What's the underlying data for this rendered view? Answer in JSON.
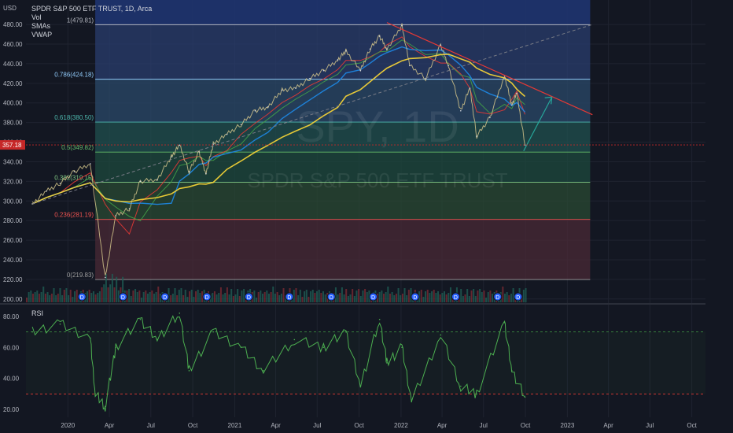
{
  "header": {
    "title": "SPDR S&P 500 ETF TRUST, 1D, Arca",
    "indicators": [
      "Vol",
      "SMAs",
      "VWAP"
    ],
    "currency": "USD"
  },
  "watermark": {
    "symbol": "SPY, 1D",
    "name": "SPDR S&P 500 ETF TRUST"
  },
  "rsi": {
    "label": "RSI"
  },
  "colors": {
    "background": "#131722",
    "sma_fast": "#e53935",
    "sma_mid": "#43a047",
    "sma_slow": "#1e88e5",
    "sma_200": "#fdd835",
    "rsi": "#4caf50",
    "arrow": "#26a69a"
  },
  "chart_data": [
    {
      "type": "line",
      "title": "SPDR S&P 500 ETF TRUST, 1D, Arca",
      "ylabel": "USD",
      "ylim": [
        195,
        505
      ],
      "y_ticks": [
        "480.00",
        "460.00",
        "440.00",
        "420.00",
        "400.00",
        "380.00",
        "360.00",
        "340.00",
        "320.00",
        "300.00",
        "280.00",
        "260.00",
        "240.00",
        "220.00",
        "200.00"
      ],
      "x_ticks": [
        "2020",
        "Apr",
        "Jul",
        "Oct",
        "2021",
        "Apr",
        "Jul",
        "Oct",
        "2022",
        "Apr",
        "Jul",
        "Oct",
        "2023",
        "Apr",
        "Jul",
        "Oct"
      ],
      "last_price": "357.18",
      "series": [
        {
          "name": "SPY",
          "x": [
            "2019-10-15",
            "2019-11-15",
            "2019-12-15",
            "2020-01-15",
            "2020-02-19",
            "2020-03-23",
            "2020-04-15",
            "2020-05-15",
            "2020-06-08",
            "2020-07-15",
            "2020-08-15",
            "2020-09-02",
            "2020-09-23",
            "2020-10-15",
            "2020-10-30",
            "2020-11-15",
            "2020-12-15",
            "2021-01-15",
            "2021-02-15",
            "2021-03-15",
            "2021-04-15",
            "2021-05-15",
            "2021-06-15",
            "2021-07-15",
            "2021-08-15",
            "2021-09-02",
            "2021-10-04",
            "2021-10-25",
            "2021-11-15",
            "2021-12-01",
            "2022-01-03",
            "2022-01-20",
            "2022-02-24",
            "2022-03-29",
            "2022-04-15",
            "2022-05-12",
            "2022-06-01",
            "2022-06-16",
            "2022-07-15",
            "2022-08-16",
            "2022-09-01",
            "2022-09-12",
            "2022-09-30"
          ],
          "values": [
            297,
            310,
            318,
            330,
            338,
            222,
            285,
            292,
            320,
            322,
            345,
            357,
            330,
            350,
            328,
            358,
            368,
            378,
            392,
            396,
            413,
            415,
            425,
            433,
            444,
            453,
            433,
            455,
            468,
            455,
            479,
            438,
            425,
            459,
            438,
            392,
            415,
            366,
            385,
            428,
            398,
            410,
            357
          ]
        }
      ],
      "fibonacci": [
        {
          "level": "1",
          "value": 479.81,
          "label": "1(479.81)"
        },
        {
          "level": "0.786",
          "value": 424.18,
          "label": "0.786(424.18)"
        },
        {
          "level": "0.618",
          "value": 380.5,
          "label": "0.618(380.50)"
        },
        {
          "level": "0.5",
          "value": 349.82,
          "label": "0.5(349.82)"
        },
        {
          "level": "0.382",
          "value": 319.15,
          "label": "0.382(319.15)"
        },
        {
          "level": "0.236",
          "value": 281.19,
          "label": "0.236(281.19)"
        },
        {
          "level": "0",
          "value": 219.83,
          "label": "0(219.83)"
        }
      ]
    },
    {
      "type": "line",
      "title": "RSI",
      "ylim": [
        15,
        87
      ],
      "y_ticks": [
        "80.00",
        "60.00",
        "40.00",
        "20.00"
      ],
      "upper_band": 70,
      "lower_band": 30,
      "series": [
        {
          "name": "RSI",
          "x": [
            "2019-10-15",
            "2019-12-15",
            "2020-02-19",
            "2020-03-01",
            "2020-03-23",
            "2020-04-15",
            "2020-06-08",
            "2020-07-15",
            "2020-09-02",
            "2020-09-23",
            "2020-11-15",
            "2021-01-15",
            "2021-03-05",
            "2021-05-12",
            "2021-07-15",
            "2021-09-02",
            "2021-10-04",
            "2021-11-15",
            "2021-12-01",
            "2022-01-03",
            "2022-01-24",
            "2022-03-29",
            "2022-05-12",
            "2022-06-16",
            "2022-08-16",
            "2022-09-01",
            "2022-09-30"
          ],
          "values": [
            70,
            75,
            66,
            30,
            22,
            60,
            78,
            65,
            82,
            45,
            70,
            60,
            45,
            65,
            60,
            70,
            35,
            78,
            50,
            60,
            25,
            68,
            35,
            30,
            76,
            45,
            28
          ]
        }
      ]
    }
  ]
}
